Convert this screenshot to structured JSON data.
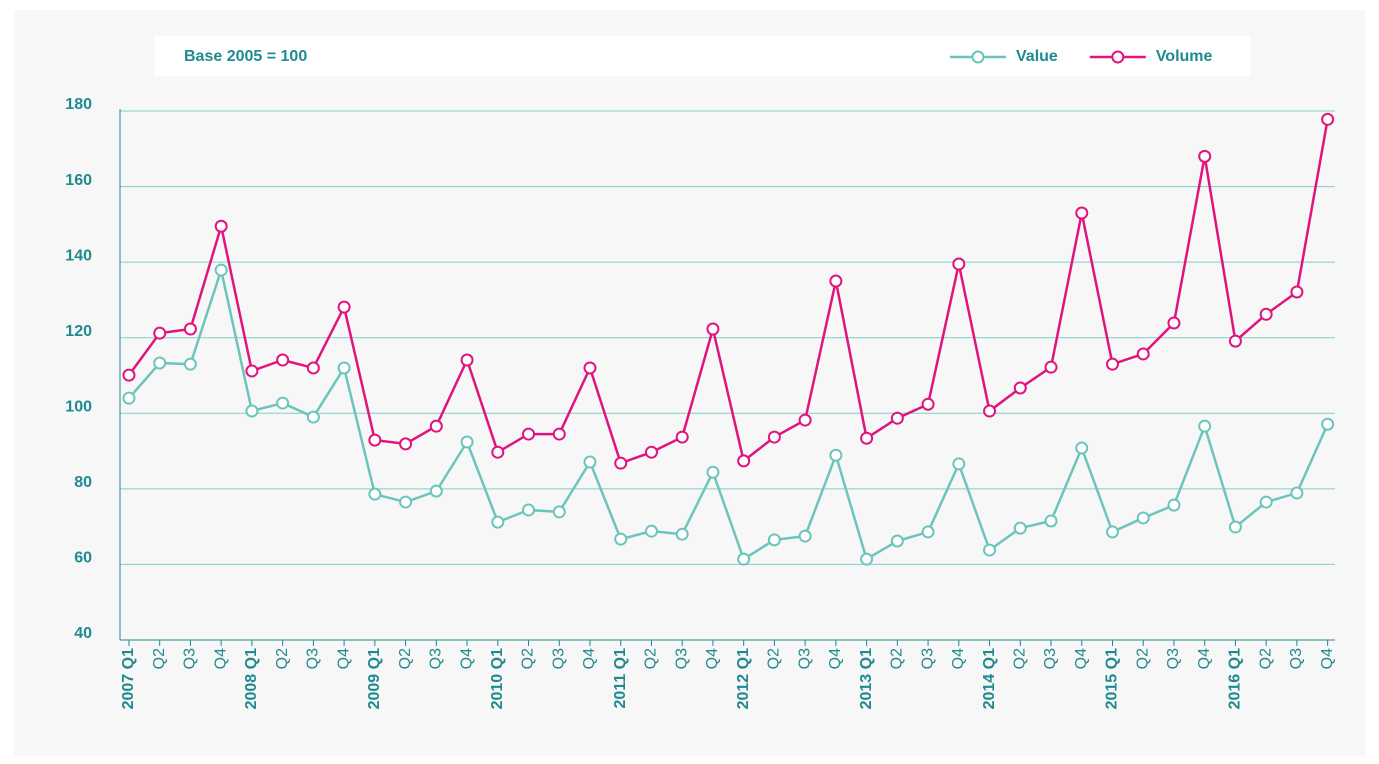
{
  "chart_data": {
    "type": "line",
    "subtitle": "Base 2005 = 100",
    "categories": [
      "2007 Q1",
      "Q2",
      "Q3",
      "Q4",
      "2008 Q1",
      "Q2",
      "Q3",
      "Q4",
      "2009 Q1",
      "Q2",
      "Q3",
      "Q4",
      "2010 Q1",
      "Q2",
      "Q3",
      "Q4",
      "2011 Q1",
      "Q2",
      "Q3",
      "Q4",
      "2012 Q1",
      "Q2",
      "Q3",
      "Q4",
      "2013 Q1",
      "Q2",
      "Q3",
      "Q4",
      "2014 Q1",
      "Q2",
      "Q3",
      "Q4",
      "2015 Q1",
      "Q2",
      "Q3",
      "Q4",
      "2016 Q1",
      "Q2",
      "Q3",
      "Q4"
    ],
    "series": [
      {
        "name": "Value",
        "color": "#6cc5bd",
        "values": [
          104,
          113.3,
          113,
          137.9,
          100.6,
          102.7,
          99,
          112,
          78.6,
          76.5,
          79.4,
          92.4,
          71.2,
          74.4,
          73.9,
          87.1,
          66.7,
          68.8,
          68,
          84.4,
          61.4,
          66.5,
          67.5,
          88.9,
          61.4,
          66.2,
          68.6,
          86.6,
          63.8,
          69.6,
          71.5,
          90.8,
          68.6,
          72.3,
          75.7,
          96.6,
          69.9,
          76.5,
          78.9,
          97.1
        ]
      },
      {
        "name": "Volume",
        "color": "#e0147f",
        "values": [
          110.1,
          121.2,
          122.3,
          149.5,
          111.2,
          114.1,
          112,
          128.1,
          92.9,
          91.9,
          96.6,
          114.1,
          89.7,
          94.5,
          94.5,
          112,
          86.8,
          89.7,
          93.7,
          122.3,
          87.4,
          93.7,
          98.2,
          135,
          93.4,
          98.7,
          102.4,
          139.5,
          100.6,
          106.7,
          112.2,
          153,
          113,
          115.7,
          123.9,
          168,
          119.1,
          126.2,
          132.1,
          177.8
        ]
      }
    ],
    "ylim": [
      40,
      180
    ],
    "yticks": [
      40,
      60,
      80,
      100,
      120,
      140,
      160,
      180
    ],
    "grid": true,
    "legend": "top-right"
  }
}
